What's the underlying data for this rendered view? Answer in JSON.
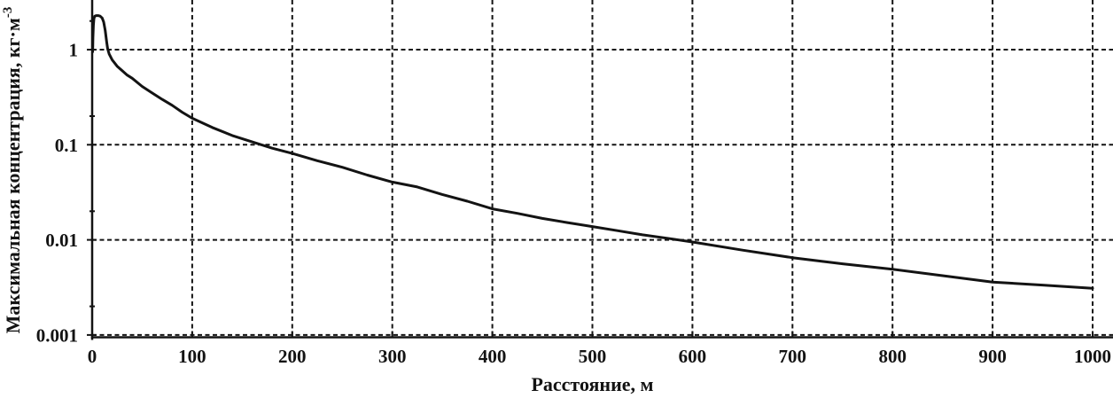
{
  "style": {
    "ink": "#131313",
    "background": "#ffffff"
  },
  "chart_data": {
    "type": "line",
    "title": "",
    "xlabel": "Расстояние, м",
    "ylabel": "Максимальная концентрация, кг·м⁻³",
    "ylabel_parts": {
      "text": "Максимальная концентрация, кг·м",
      "superscript": "-3"
    },
    "x_axis": {
      "min": 0,
      "max": 1000,
      "ticks": [
        0,
        100,
        200,
        300,
        400,
        500,
        600,
        700,
        800,
        900,
        1000
      ],
      "tick_labels": [
        "0",
        "100",
        "200",
        "300",
        "400",
        "500",
        "600",
        "700",
        "800",
        "900",
        "1000"
      ]
    },
    "y_axis": {
      "scale": "log",
      "min": 0.001,
      "max": 3.3,
      "ticks": [
        {
          "value": 1,
          "label": "1"
        },
        {
          "value": 0.1,
          "label": "0.1"
        },
        {
          "value": 0.01,
          "label": "0.01"
        },
        {
          "value": 0.001,
          "label": "0.001"
        }
      ],
      "minor_ticks": [
        2,
        0.2,
        0.02,
        0.002
      ]
    },
    "grid": {
      "style": "dashed",
      "horizontal": true,
      "vertical": true
    },
    "legend": null,
    "series": [
      {
        "name": "максимальная концентрация",
        "color": "#131313",
        "points": [
          [
            0.5,
            0.95
          ],
          [
            0.8,
            1.35
          ],
          [
            1.2,
            1.8
          ],
          [
            1.8,
            2.12
          ],
          [
            2.5,
            2.24
          ],
          [
            4,
            2.28
          ],
          [
            6,
            2.28
          ],
          [
            8,
            2.25
          ],
          [
            10,
            2.15
          ],
          [
            11.5,
            1.95
          ],
          [
            13,
            1.6
          ],
          [
            14.5,
            1.2
          ],
          [
            15.5,
            1.02
          ],
          [
            17,
            0.9
          ],
          [
            20,
            0.78
          ],
          [
            25,
            0.67
          ],
          [
            30,
            0.6
          ],
          [
            35,
            0.54
          ],
          [
            40,
            0.5
          ],
          [
            50,
            0.41
          ],
          [
            60,
            0.35
          ],
          [
            70,
            0.3
          ],
          [
            80,
            0.26
          ],
          [
            90,
            0.22
          ],
          [
            100,
            0.19
          ],
          [
            120,
            0.152
          ],
          [
            140,
            0.125
          ],
          [
            160,
            0.107
          ],
          [
            180,
            0.092
          ],
          [
            200,
            0.081
          ],
          [
            225,
            0.068
          ],
          [
            250,
            0.058
          ],
          [
            275,
            0.048
          ],
          [
            300,
            0.0405
          ],
          [
            325,
            0.036
          ],
          [
            350,
            0.03
          ],
          [
            375,
            0.0255
          ],
          [
            400,
            0.0212
          ],
          [
            425,
            0.019
          ],
          [
            450,
            0.0168
          ],
          [
            475,
            0.0152
          ],
          [
            500,
            0.0138
          ],
          [
            525,
            0.0125
          ],
          [
            550,
            0.0113
          ],
          [
            575,
            0.0104
          ],
          [
            600,
            0.0095
          ],
          [
            650,
            0.0078
          ],
          [
            700,
            0.0065
          ],
          [
            750,
            0.0056
          ],
          [
            800,
            0.0049
          ],
          [
            850,
            0.0042
          ],
          [
            900,
            0.0036
          ],
          [
            950,
            0.00335
          ],
          [
            1000,
            0.0031
          ]
        ]
      }
    ]
  }
}
